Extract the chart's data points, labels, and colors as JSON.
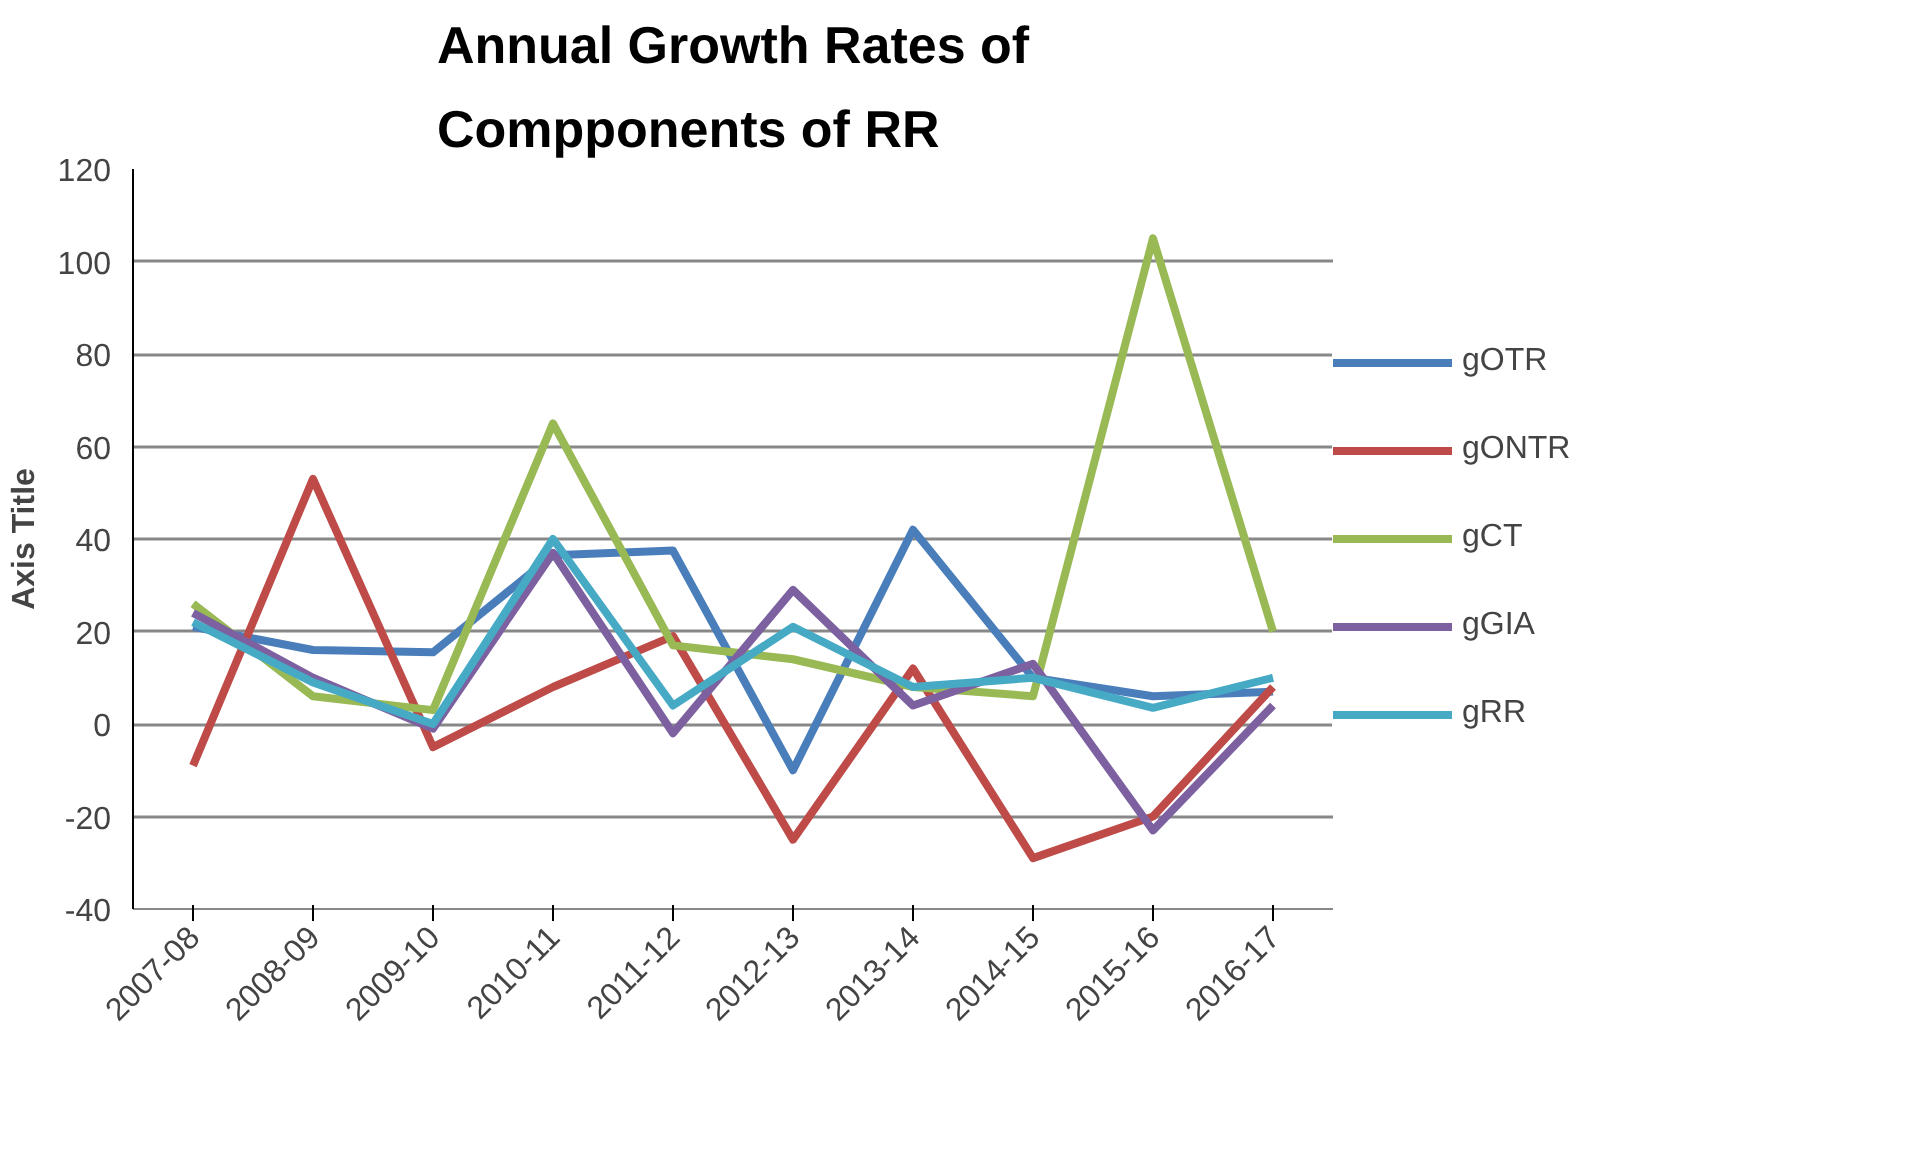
{
  "chart_data": {
    "type": "line",
    "title": "Annual Growth Rates of Compponents of RR",
    "ylabel": "Axis Title",
    "categories": [
      "2007-08",
      "2008-09",
      "2009-10",
      "2010-11",
      "2011-12",
      "2012-13",
      "2013-14",
      "2014-15",
      "2015-16",
      "2016-17"
    ],
    "series": [
      {
        "name": "gOTR",
        "color": "#4a7ebb",
        "values": [
          21,
          16,
          15.5,
          36.5,
          37.5,
          -10,
          42,
          10,
          6,
          7
        ]
      },
      {
        "name": "gONTR",
        "color": "#be4b48",
        "values": [
          -9,
          53,
          -5,
          8,
          19,
          -25,
          12,
          -29,
          -20,
          8
        ]
      },
      {
        "name": "gCT",
        "color": "#98b954",
        "values": [
          26,
          6,
          3,
          65,
          17,
          14,
          8,
          6,
          105,
          20
        ]
      },
      {
        "name": "gGIA",
        "color": "#7d60a0",
        "values": [
          24,
          10,
          -1,
          37,
          -2,
          29,
          4,
          13,
          -23,
          4
        ]
      },
      {
        "name": "gRR",
        "color": "#46aac5",
        "values": [
          22,
          9,
          0,
          40,
          4,
          21,
          8,
          10,
          3.5,
          10
        ]
      }
    ],
    "ylim": [
      -40,
      120
    ],
    "yticks": [
      -40,
      -20,
      0,
      20,
      40,
      60,
      80,
      100,
      120
    ],
    "grid": "y",
    "legend": "right",
    "marker": "none",
    "line_style": "solid"
  }
}
